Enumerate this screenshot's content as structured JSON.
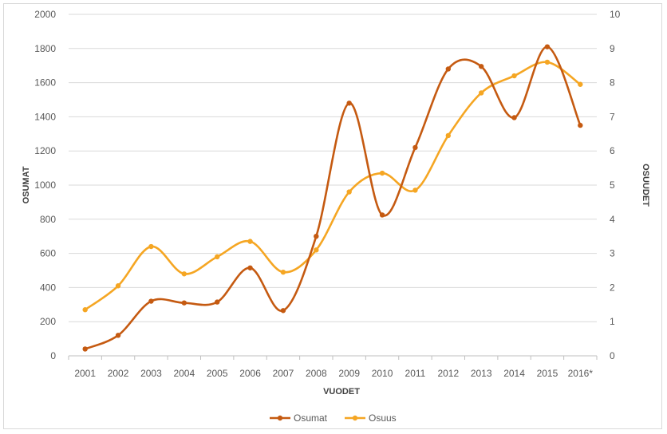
{
  "chart_data": {
    "type": "line",
    "title": "",
    "xlabel": "VUODET",
    "ylabel": "OSUMAT",
    "y2label": "OSUUDET",
    "ylim": [
      0,
      2000
    ],
    "y2lim": [
      0,
      10
    ],
    "yticks": [
      "0",
      "200",
      "400",
      "600",
      "800",
      "1000",
      "1200",
      "1400",
      "1600",
      "1800",
      "2000"
    ],
    "y2ticks": [
      "0",
      "1",
      "2",
      "3",
      "4",
      "5",
      "6",
      "7",
      "8",
      "9",
      "10"
    ],
    "categories": [
      "2001",
      "2002",
      "2003",
      "2004",
      "2005",
      "2006",
      "2007",
      "2008",
      "2009",
      "2010",
      "2011",
      "2012",
      "2013",
      "2014",
      "2015",
      "2016*"
    ],
    "grid": true,
    "legend_position": "bottom",
    "series": [
      {
        "name": "Osumat",
        "axis": "left",
        "color": "#c55a11",
        "values": [
          40,
          120,
          320,
          310,
          315,
          515,
          265,
          700,
          1480,
          825,
          1220,
          1680,
          1695,
          1395,
          1810,
          1350
        ]
      },
      {
        "name": "Osuus",
        "axis": "right",
        "color": "#f5a623",
        "values": [
          1.35,
          2.05,
          3.2,
          2.4,
          2.9,
          3.35,
          2.45,
          3.1,
          4.8,
          5.35,
          4.85,
          6.45,
          7.7,
          8.2,
          8.6,
          7.95
        ]
      }
    ]
  }
}
